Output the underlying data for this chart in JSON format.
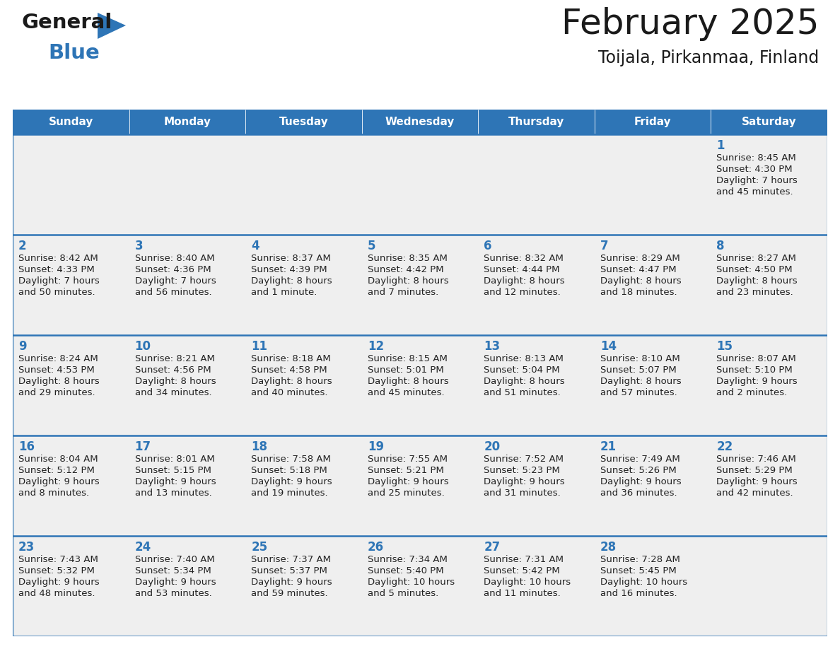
{
  "title": "February 2025",
  "subtitle": "Toijala, Pirkanmaa, Finland",
  "header_color": "#2E75B6",
  "header_text_color": "#FFFFFF",
  "background_color": "#FFFFFF",
  "cell_bg_color": "#EFEFEF",
  "row_line_color": "#2E75B6",
  "day_number_color": "#2E75B6",
  "text_color": "#222222",
  "days_of_week": [
    "Sunday",
    "Monday",
    "Tuesday",
    "Wednesday",
    "Thursday",
    "Friday",
    "Saturday"
  ],
  "weeks": [
    [
      {
        "day": "",
        "info": ""
      },
      {
        "day": "",
        "info": ""
      },
      {
        "day": "",
        "info": ""
      },
      {
        "day": "",
        "info": ""
      },
      {
        "day": "",
        "info": ""
      },
      {
        "day": "",
        "info": ""
      },
      {
        "day": "1",
        "info": "Sunrise: 8:45 AM\nSunset: 4:30 PM\nDaylight: 7 hours\nand 45 minutes."
      }
    ],
    [
      {
        "day": "2",
        "info": "Sunrise: 8:42 AM\nSunset: 4:33 PM\nDaylight: 7 hours\nand 50 minutes."
      },
      {
        "day": "3",
        "info": "Sunrise: 8:40 AM\nSunset: 4:36 PM\nDaylight: 7 hours\nand 56 minutes."
      },
      {
        "day": "4",
        "info": "Sunrise: 8:37 AM\nSunset: 4:39 PM\nDaylight: 8 hours\nand 1 minute."
      },
      {
        "day": "5",
        "info": "Sunrise: 8:35 AM\nSunset: 4:42 PM\nDaylight: 8 hours\nand 7 minutes."
      },
      {
        "day": "6",
        "info": "Sunrise: 8:32 AM\nSunset: 4:44 PM\nDaylight: 8 hours\nand 12 minutes."
      },
      {
        "day": "7",
        "info": "Sunrise: 8:29 AM\nSunset: 4:47 PM\nDaylight: 8 hours\nand 18 minutes."
      },
      {
        "day": "8",
        "info": "Sunrise: 8:27 AM\nSunset: 4:50 PM\nDaylight: 8 hours\nand 23 minutes."
      }
    ],
    [
      {
        "day": "9",
        "info": "Sunrise: 8:24 AM\nSunset: 4:53 PM\nDaylight: 8 hours\nand 29 minutes."
      },
      {
        "day": "10",
        "info": "Sunrise: 8:21 AM\nSunset: 4:56 PM\nDaylight: 8 hours\nand 34 minutes."
      },
      {
        "day": "11",
        "info": "Sunrise: 8:18 AM\nSunset: 4:58 PM\nDaylight: 8 hours\nand 40 minutes."
      },
      {
        "day": "12",
        "info": "Sunrise: 8:15 AM\nSunset: 5:01 PM\nDaylight: 8 hours\nand 45 minutes."
      },
      {
        "day": "13",
        "info": "Sunrise: 8:13 AM\nSunset: 5:04 PM\nDaylight: 8 hours\nand 51 minutes."
      },
      {
        "day": "14",
        "info": "Sunrise: 8:10 AM\nSunset: 5:07 PM\nDaylight: 8 hours\nand 57 minutes."
      },
      {
        "day": "15",
        "info": "Sunrise: 8:07 AM\nSunset: 5:10 PM\nDaylight: 9 hours\nand 2 minutes."
      }
    ],
    [
      {
        "day": "16",
        "info": "Sunrise: 8:04 AM\nSunset: 5:12 PM\nDaylight: 9 hours\nand 8 minutes."
      },
      {
        "day": "17",
        "info": "Sunrise: 8:01 AM\nSunset: 5:15 PM\nDaylight: 9 hours\nand 13 minutes."
      },
      {
        "day": "18",
        "info": "Sunrise: 7:58 AM\nSunset: 5:18 PM\nDaylight: 9 hours\nand 19 minutes."
      },
      {
        "day": "19",
        "info": "Sunrise: 7:55 AM\nSunset: 5:21 PM\nDaylight: 9 hours\nand 25 minutes."
      },
      {
        "day": "20",
        "info": "Sunrise: 7:52 AM\nSunset: 5:23 PM\nDaylight: 9 hours\nand 31 minutes."
      },
      {
        "day": "21",
        "info": "Sunrise: 7:49 AM\nSunset: 5:26 PM\nDaylight: 9 hours\nand 36 minutes."
      },
      {
        "day": "22",
        "info": "Sunrise: 7:46 AM\nSunset: 5:29 PM\nDaylight: 9 hours\nand 42 minutes."
      }
    ],
    [
      {
        "day": "23",
        "info": "Sunrise: 7:43 AM\nSunset: 5:32 PM\nDaylight: 9 hours\nand 48 minutes."
      },
      {
        "day": "24",
        "info": "Sunrise: 7:40 AM\nSunset: 5:34 PM\nDaylight: 9 hours\nand 53 minutes."
      },
      {
        "day": "25",
        "info": "Sunrise: 7:37 AM\nSunset: 5:37 PM\nDaylight: 9 hours\nand 59 minutes."
      },
      {
        "day": "26",
        "info": "Sunrise: 7:34 AM\nSunset: 5:40 PM\nDaylight: 10 hours\nand 5 minutes."
      },
      {
        "day": "27",
        "info": "Sunrise: 7:31 AM\nSunset: 5:42 PM\nDaylight: 10 hours\nand 11 minutes."
      },
      {
        "day": "28",
        "info": "Sunrise: 7:28 AM\nSunset: 5:45 PM\nDaylight: 10 hours\nand 16 minutes."
      },
      {
        "day": "",
        "info": ""
      }
    ]
  ],
  "fig_width": 11.88,
  "fig_height": 9.18,
  "dpi": 100
}
